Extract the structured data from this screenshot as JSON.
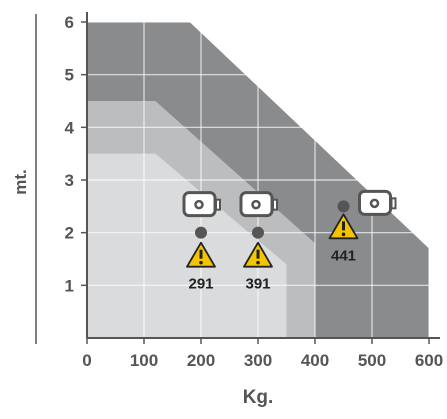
{
  "chart_data": {
    "type": "area",
    "xlabel": "Kg.",
    "ylabel": "mt.",
    "xlim": [
      0,
      600
    ],
    "ylim": [
      0,
      6
    ],
    "x_ticks": [
      0,
      100,
      200,
      300,
      400,
      500,
      600
    ],
    "y_ticks": [
      1,
      2,
      3,
      4,
      5,
      6
    ],
    "grid": true,
    "zones": [
      {
        "shade": "dark",
        "color": "#8a8b8d",
        "boundary_x": [
          0,
          180,
          600,
          600
        ],
        "boundary_y": [
          6,
          6,
          1.7,
          0
        ]
      },
      {
        "shade": "medium",
        "color": "#bcbdbf",
        "boundary_x": [
          0,
          120,
          400,
          400
        ],
        "boundary_y": [
          4.5,
          4.5,
          1.8,
          0
        ]
      },
      {
        "shade": "light",
        "color": "#dadbdc",
        "boundary_x": [
          0,
          120,
          350,
          350
        ],
        "boundary_y": [
          3.5,
          3.5,
          1.4,
          0
        ]
      }
    ],
    "markers": [
      {
        "label": "291",
        "x": 200,
        "y": 2.0,
        "icon": "camera-icon",
        "warning_icon": "warning-icon"
      },
      {
        "label": "391",
        "x": 300,
        "y": 2.0,
        "icon": "camera-icon",
        "warning_icon": "warning-icon"
      },
      {
        "label": "441",
        "x": 450,
        "y": 2.5,
        "icon": "camera-icon",
        "warning_icon": "warning-icon"
      }
    ],
    "colors": {
      "axis": "#555555",
      "grid": "#ffffff",
      "tick_text": "#555555",
      "dot": "#555555",
      "warning_fill": "#f5c400",
      "warning_stroke": "#222222",
      "camera_stroke": "#555555"
    }
  }
}
